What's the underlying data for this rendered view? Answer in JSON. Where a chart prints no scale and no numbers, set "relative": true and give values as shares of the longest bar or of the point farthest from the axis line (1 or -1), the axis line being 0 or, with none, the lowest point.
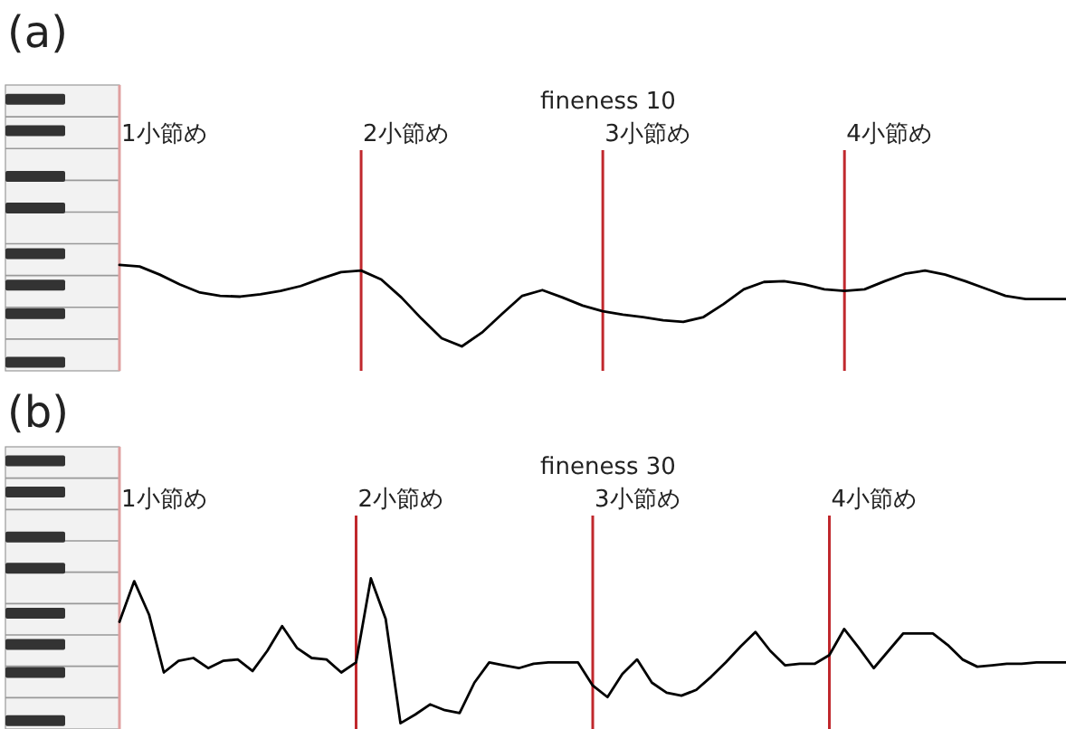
{
  "chart_data": [
    {
      "type": "line",
      "title": "fineness 10",
      "annotations": [
        "(a)",
        "1小節め",
        "2小節め",
        "3小節め",
        "4小節め"
      ],
      "grid": "x",
      "relative": true,
      "line_style": "solid",
      "categories": [
        null,
        null,
        null,
        null,
        null,
        null,
        null,
        null,
        null,
        null,
        null,
        null,
        null,
        null,
        null,
        null,
        null,
        null,
        null,
        null,
        null,
        null,
        null,
        null,
        null,
        null,
        null,
        null,
        null,
        null,
        null,
        null,
        null,
        null,
        null,
        null,
        null,
        null,
        null,
        null,
        null,
        null,
        null,
        null,
        null,
        null,
        null,
        null
      ],
      "series": [
        {
          "color": "#000000",
          "values": [
            1.0,
            0.98,
            0.88,
            0.76,
            0.66,
            0.62,
            0.61,
            0.64,
            0.68,
            0.74,
            0.83,
            0.91,
            0.93,
            0.82,
            0.6,
            0.34,
            0.1,
            0.0,
            0.17,
            0.4,
            0.62,
            0.69,
            0.6,
            0.5,
            0.43,
            0.39,
            0.36,
            0.32,
            0.3,
            0.36,
            0.52,
            0.7,
            0.79,
            0.8,
            0.76,
            0.7,
            0.68,
            0.7,
            0.8,
            0.89,
            0.93,
            0.88,
            0.8,
            0.71,
            0.62,
            0.58,
            0.58,
            0.58
          ]
        }
      ]
    },
    {
      "type": "line",
      "title": "fineness 30",
      "annotations": [
        "(b)",
        "1小節め",
        "2小節め",
        "3小節め",
        "4小節め"
      ],
      "grid": "x",
      "relative": true,
      "line_style": "solid",
      "categories": [
        null,
        null,
        null,
        null,
        null,
        null,
        null,
        null,
        null,
        null,
        null,
        null,
        null,
        null,
        null,
        null,
        null,
        null,
        null,
        null,
        null,
        null,
        null,
        null,
        null,
        null,
        null,
        null,
        null,
        null,
        null,
        null,
        null,
        null,
        null,
        null,
        null,
        null,
        null,
        null,
        null,
        null,
        null,
        null,
        null,
        null,
        null,
        null,
        null,
        null,
        null,
        null,
        null,
        null,
        null,
        null,
        null,
        null,
        null,
        null,
        null,
        null,
        null,
        null,
        null
      ],
      "series": [
        {
          "color": "#000000",
          "values": [
            0.7,
            0.98,
            0.75,
            0.35,
            0.43,
            0.45,
            0.38,
            0.43,
            0.44,
            0.36,
            0.5,
            0.67,
            0.52,
            0.45,
            0.44,
            0.35,
            0.42,
            1.0,
            0.72,
            0.0,
            0.06,
            0.13,
            0.09,
            0.07,
            0.28,
            0.42,
            0.4,
            0.38,
            0.41,
            0.42,
            0.42,
            0.42,
            0.26,
            0.18,
            0.34,
            0.44,
            0.28,
            0.21,
            0.19,
            0.23,
            0.32,
            0.42,
            0.53,
            0.63,
            0.5,
            0.4,
            0.41,
            0.41,
            0.47,
            0.65,
            0.52,
            0.38,
            0.5,
            0.62,
            0.62,
            0.62,
            0.54,
            0.44,
            0.39,
            0.4,
            0.41,
            0.41,
            0.42,
            0.42,
            0.42
          ]
        }
      ]
    }
  ]
}
